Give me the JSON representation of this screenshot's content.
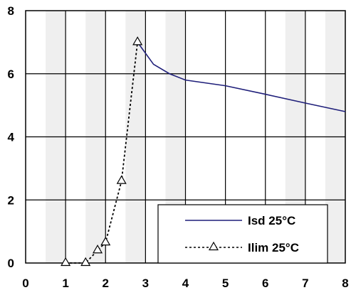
{
  "chart_data": {
    "type": "line",
    "xlim": [
      0,
      8
    ],
    "ylim": [
      0,
      8
    ],
    "x_ticks": [
      "0",
      "1",
      "2",
      "3",
      "4",
      "5",
      "6",
      "7",
      "8"
    ],
    "y_ticks": [
      "0",
      "2",
      "4",
      "6",
      "8"
    ],
    "shaded_x_bands": [
      [
        0.5,
        1
      ],
      [
        1.5,
        2
      ],
      [
        2.5,
        3
      ],
      [
        3.5,
        4
      ],
      [
        6.5,
        7
      ],
      [
        7.5,
        8
      ]
    ],
    "grid": true,
    "legend_position": "bottom-right",
    "series": [
      {
        "name": "Isd 25°C",
        "color": "#1f1f7a",
        "line_style": "solid",
        "marker": "none",
        "x": [
          2.8,
          3.2,
          3.6,
          4.0,
          5.0,
          6.0,
          7.0,
          8.0
        ],
        "y": [
          7.0,
          6.3,
          6.0,
          5.8,
          5.62,
          5.35,
          5.07,
          4.8
        ]
      },
      {
        "name": "Ilim 25°C",
        "color": "#000000",
        "line_style": "dotted",
        "marker": "triangle-open",
        "x": [
          1.0,
          1.5,
          1.8,
          2.0,
          2.4,
          2.8
        ],
        "y": [
          0.0,
          0.0,
          0.4,
          0.65,
          2.6,
          7.0
        ]
      }
    ]
  }
}
